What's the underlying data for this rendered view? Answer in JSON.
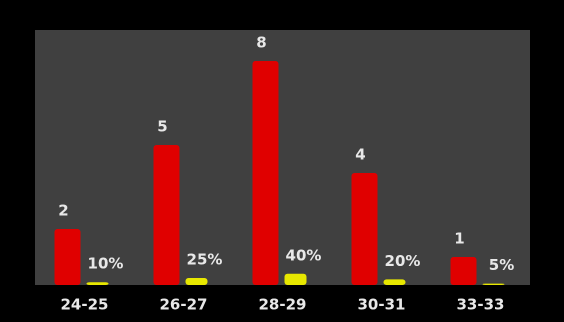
{
  "chart_data": {
    "type": "bar",
    "categories": [
      "24-25",
      "26-27",
      "28-29",
      "30-31",
      "33-33"
    ],
    "series": [
      {
        "color": "#e00000",
        "values": [
          2,
          5,
          8,
          4,
          1
        ]
      },
      {
        "color": "#e8e800",
        "axis": "y2",
        "values": [
          10,
          25,
          40,
          20,
          5
        ],
        "value_labels": [
          "10%",
          "25%",
          "40%",
          "20%",
          "5%"
        ]
      }
    ],
    "ylim": [
      0,
      9
    ],
    "y2lim": [
      0,
      900
    ]
  }
}
